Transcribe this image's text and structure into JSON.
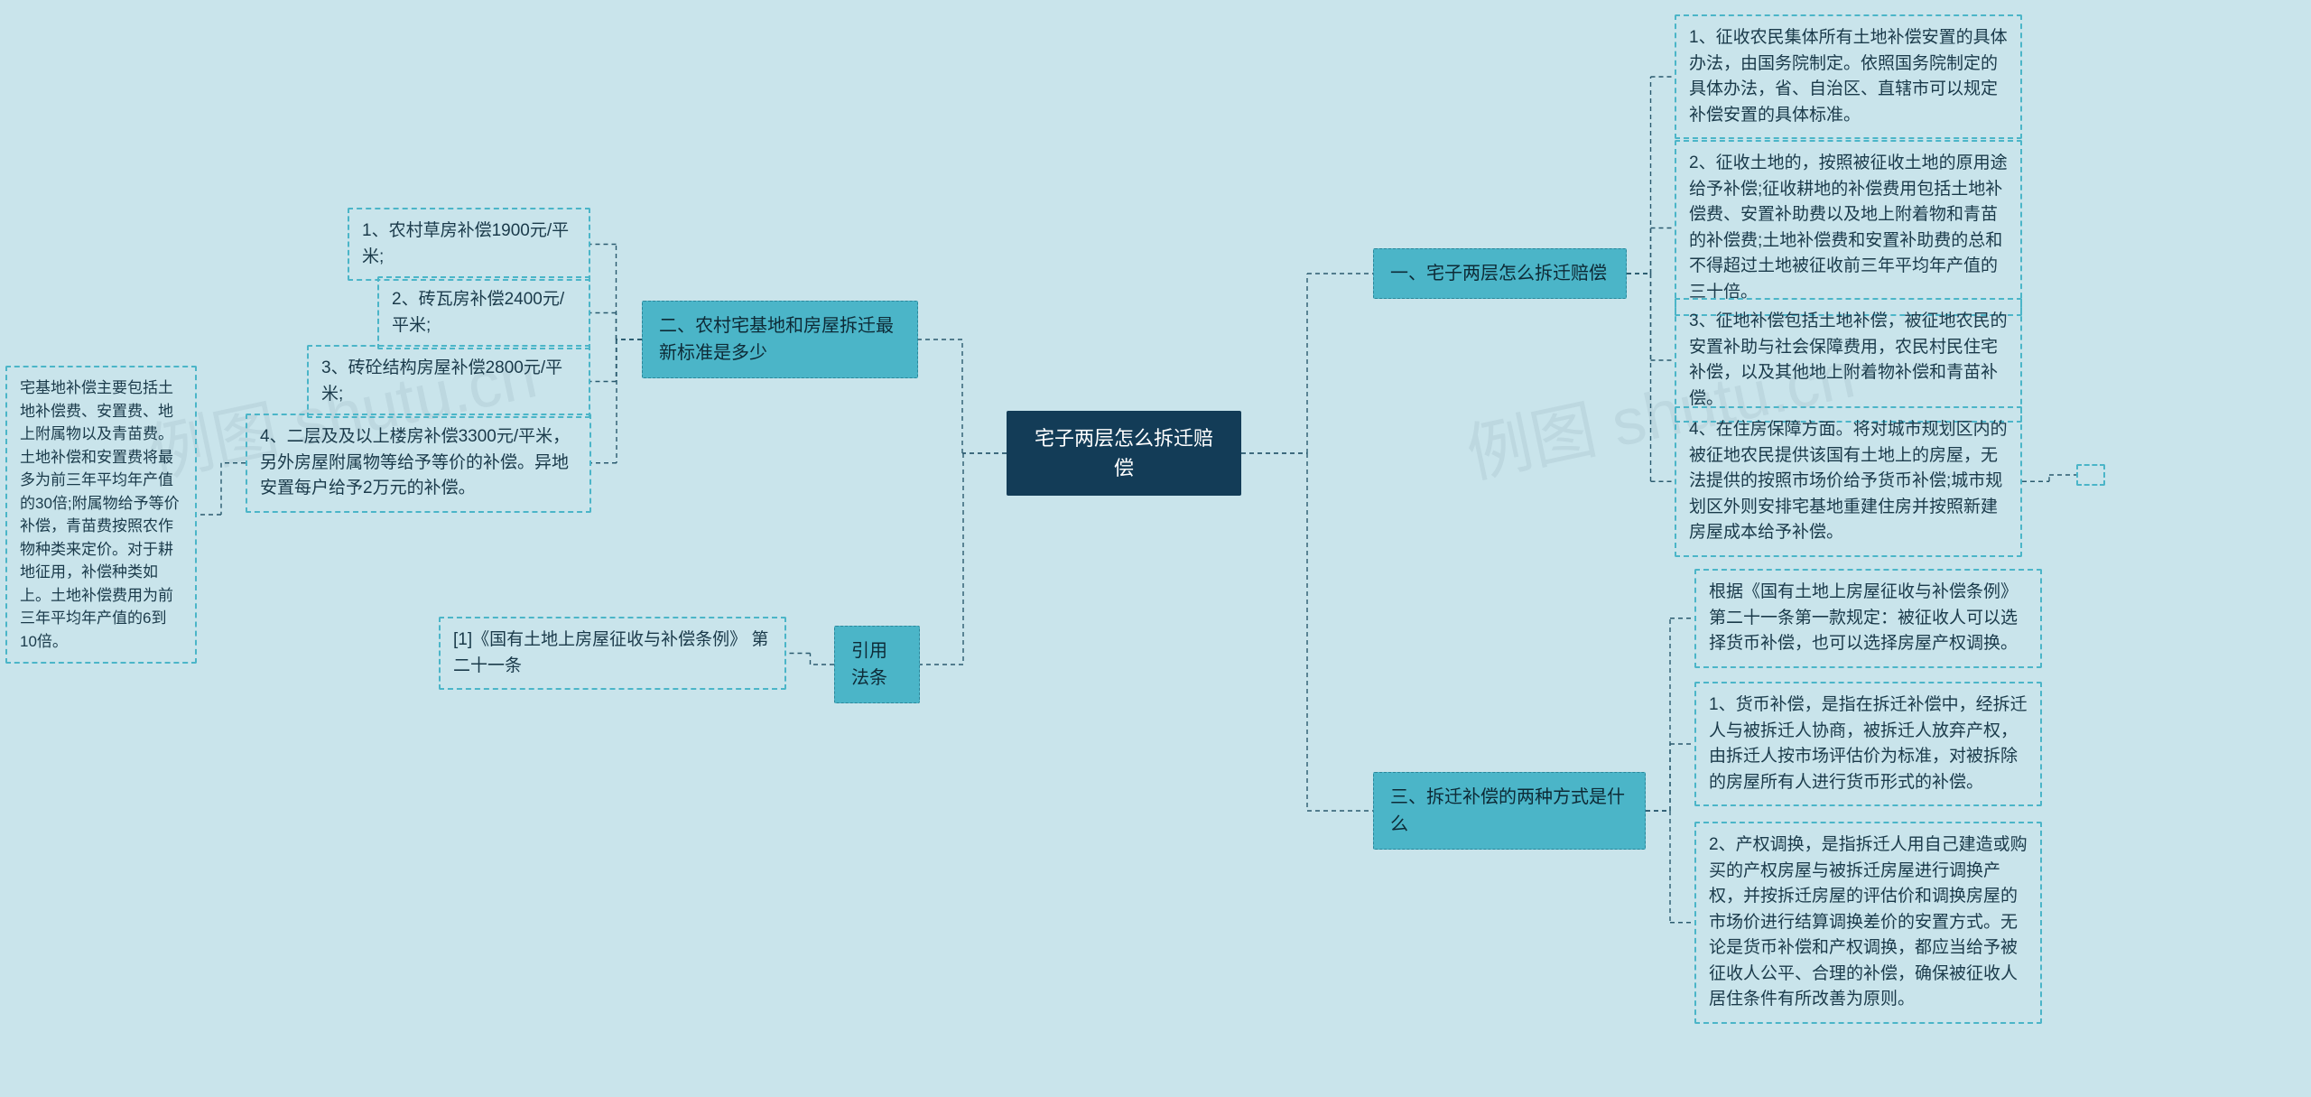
{
  "type": "mindmap",
  "background_color": "#c9e4eb",
  "root_color": "#133c57",
  "branch_color": "#4bb5c8",
  "leaf_border_color": "#4bb5c8",
  "connector_color": "#2a5a6e",
  "text_color": "#1a3a4a",
  "root_text_color": "#ffffff",
  "watermark_text": "例图 shutu.cn",
  "root": {
    "label": "宅子两层怎么拆迁赔偿"
  },
  "right_branches": {
    "b1": {
      "label": "一、宅子两层怎么拆迁赔偿",
      "leaves": {
        "l1": "1、征收农民集体所有土地补偿安置的具体办法，由国务院制定。依照国务院制定的具体办法，省、自治区、直辖市可以规定补偿安置的具体标准。",
        "l2": "2、征收土地的，按照被征收土地的原用途给予补偿;征收耕地的补偿费用包括土地补偿费、安置补助费以及地上附着物和青苗的补偿费;土地补偿费和安置补助费的总和不得超过土地被征收前三年平均年产值的三十倍。",
        "l3": "3、征地补偿包括土地补偿，被征地农民的安置补助与社会保障费用，农民村民住宅补偿，以及其他地上附着物补偿和青苗补偿。",
        "l4": "4、在住房保障方面。将对城市规划区内的被征地农民提供该国有土地上的房屋，无法提供的按照市场价给予货币补偿;城市规划区外则安排宅基地重建住房并按照新建房屋成本给予补偿。"
      }
    },
    "b3": {
      "label": "三、拆迁补偿的两种方式是什么",
      "leaves": {
        "l0": "根据《国有土地上房屋征收与补偿条例》第二十一条第一款规定：被征收人可以选择货币补偿，也可以选择房屋产权调换。",
        "l1": "1、货币补偿，是指在拆迁补偿中，经拆迁人与被拆迁人协商，被拆迁人放弃产权，由拆迁人按市场评估价为标准，对被拆除的房屋所有人进行货币形式的补偿。",
        "l2": "2、产权调换，是指拆迁人用自己建造或购买的产权房屋与被拆迁房屋进行调换产权，并按拆迁房屋的评估价和调换房屋的市场价进行结算调换差价的安置方式。无论是货币补偿和产权调换，都应当给予被征收人公平、合理的补偿，确保被征收人居住条件有所改善为原则。"
      }
    }
  },
  "left_branches": {
    "b2": {
      "label": "二、农村宅基地和房屋拆迁最新标准是多少",
      "leaves": {
        "l1": "1、农村草房补偿1900元/平米;",
        "l2": "2、砖瓦房补偿2400元/平米;",
        "l3": "3、砖砼结构房屋补偿2800元/平米;",
        "l4": "4、二层及及以上楼房补偿3300元/平米，另外房屋附属物等给予等价的补偿。异地安置每户给予2万元的补偿。",
        "l4_detail": "宅基地补偿主要包括土地补偿费、安置费、地上附属物以及青苗费。土地补偿和安置费将最多为前三年平均年产值的30倍;附属物给予等价补偿，青苗费按照农作物种类来定价。对于耕地征用，补偿种类如上。土地补偿费用为前三年平均年产值的6到10倍。"
      }
    },
    "bref": {
      "label": "引用法条",
      "leaves": {
        "l1": "[1]《国有土地上房屋征收与补偿条例》 第二十一条"
      }
    }
  }
}
